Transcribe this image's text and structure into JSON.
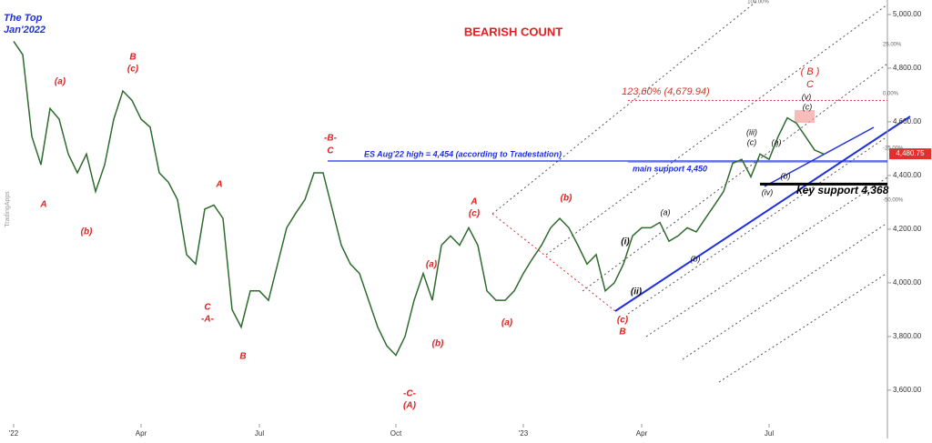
{
  "chart_data": {
    "type": "line",
    "title": "BEARISH COUNT",
    "categories": [
      "'22",
      null,
      null,
      null,
      null,
      null,
      null,
      null,
      null,
      null,
      null,
      null,
      null,
      null,
      "Apr",
      null,
      null,
      null,
      null,
      null,
      null,
      null,
      null,
      null,
      null,
      null,
      null,
      "Jul",
      null,
      null,
      null,
      null,
      null,
      null,
      null,
      null,
      null,
      null,
      null,
      null,
      null,
      null,
      "Oct",
      null,
      null,
      null,
      null,
      null,
      null,
      null,
      null,
      null,
      null,
      null,
      null,
      null,
      "'23",
      null,
      null,
      null,
      null,
      null,
      null,
      null,
      null,
      null,
      null,
      null,
      null,
      "Apr",
      null,
      null,
      null,
      null,
      null,
      null,
      null,
      null,
      null,
      null,
      null,
      null,
      null,
      "Jul",
      null,
      null,
      null,
      null,
      null,
      null
    ],
    "values": [
      4900,
      4850,
      4545,
      4440,
      4650,
      4610,
      4480,
      4410,
      4480,
      4340,
      4440,
      4610,
      4715,
      4680,
      4610,
      4580,
      4410,
      4375,
      4310,
      4105,
      4070,
      4275,
      4290,
      4240,
      3900,
      3835,
      3970,
      3970,
      3935,
      4070,
      4205,
      4260,
      4310,
      4410,
      4410,
      4275,
      4140,
      4070,
      4035,
      3935,
      3835,
      3765,
      3730,
      3800,
      3935,
      4035,
      3935,
      4140,
      4175,
      4140,
      4205,
      4140,
      3970,
      3935,
      3935,
      3970,
      4035,
      4090,
      4140,
      4205,
      4240,
      4205,
      4140,
      4070,
      4105,
      3970,
      4000,
      4070,
      4175,
      4205,
      4205,
      4225,
      4155,
      4175,
      4205,
      4190,
      4240,
      4290,
      4340,
      4445,
      4460,
      4395,
      4480,
      4460,
      4545,
      4615,
      4595,
      4545,
      4495,
      4480
    ],
    "color": "#2e6b2e",
    "xlim": [
      -1.5,
      96
    ],
    "ylim": [
      3420,
      5054
    ],
    "yticks": [
      {
        "value": 3600,
        "label": "3,600.00"
      },
      {
        "value": 3800,
        "label": "3,800.00"
      },
      {
        "value": 4000,
        "label": "4,000.00"
      },
      {
        "value": 4200,
        "label": "4,200.00"
      },
      {
        "value": 4400,
        "label": "4,400.00"
      },
      {
        "value": 4600,
        "label": "4,600.00"
      },
      {
        "value": 4800,
        "label": "4,800.00"
      },
      {
        "value": 5000,
        "label": "5,000.00"
      }
    ],
    "last_price": {
      "value": 4480.75,
      "label": "4,480.75"
    },
    "levels": [
      {
        "value": 4454,
        "label": "ES Aug'22 high = 4,454 (according to Tradestation)",
        "color": "#1f2fe0"
      },
      {
        "value": 4450,
        "label": "main support 4,450",
        "color": "#1f2fe0"
      },
      {
        "value": 4368,
        "label": "key support 4,368",
        "color": "#000000"
      },
      {
        "value": 4679.94,
        "label": "123.60% (4,679.94)",
        "color": "#e03030"
      }
    ],
    "annotations": [
      "The Top",
      "Jan'2022",
      "(a)",
      "A",
      "(b)",
      "B",
      "(c)",
      "A",
      "C",
      "-A-",
      "B",
      "-B-",
      "C",
      "-C-",
      "(A)",
      "(a)",
      "(b)",
      "A",
      "(c)",
      "(a)",
      "(b)",
      "(c)",
      "B",
      "(i)",
      "(ii)",
      "(a)",
      "(b)",
      "(iii)",
      "(c)",
      "(a)",
      "(b)",
      "(iv)",
      "( B )",
      "C",
      "(v)",
      "(c)",
      "100.00%",
      "25.00%",
      "0.00%",
      "-25.00%",
      "-50.00%",
      "TradingApps"
    ]
  }
}
